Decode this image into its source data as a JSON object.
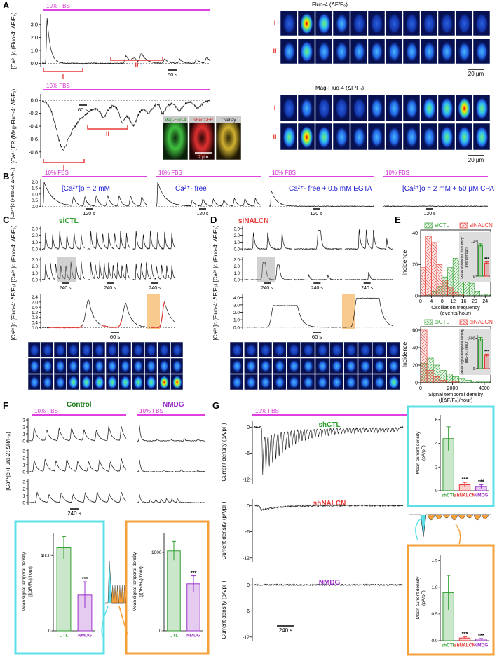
{
  "panel_labels": [
    "A",
    "B",
    "C",
    "D",
    "E",
    "F",
    "G"
  ],
  "panel_a": {
    "fbs_top": "10% FBS",
    "fbs_bottom": "10% FBS",
    "ylabel_top": "[Ca²⁺]c (Fluo-4: ΔF/F₀)",
    "ylim_top": [
      -0.3,
      3.8
    ],
    "yticks_top": [
      {
        "value": 0,
        "label": "0.0"
      },
      {
        "value": 1,
        "label": "1.0"
      },
      {
        "value": 2,
        "label": "2.0"
      },
      {
        "value": 3,
        "label": "3.0"
      }
    ],
    "ylabel_bottom": "[Ca²⁺]ER (Mag-Fluo-4: ΔF/F₀)",
    "ylim_bottom": [
      -0.9,
      0.1
    ],
    "yticks_bottom": [
      -0.8,
      -0.6,
      -0.4,
      -0.2,
      {
        "value": 0,
        "label": "0.0"
      }
    ],
    "phase_labels_top": [
      "I",
      "II"
    ],
    "phase_labels_bottom": [
      "I",
      "II"
    ],
    "scale_top": "60 s",
    "scale_bottom": "60 s",
    "inset_labels": [
      "Mag-Fluo-4",
      "DsRed2-ER",
      "Overlay"
    ],
    "inset_scale": "2 µm",
    "images_top_title": "Fluo-4 (ΔF/F₀)",
    "images_top_rows": [
      "I",
      "II"
    ],
    "images_top_scale": "20 µm",
    "images_bottom_title": "Mag-Fluo-4 (ΔF/F₀)",
    "images_bottom_rows": [
      "I",
      "II"
    ],
    "images_bottom_scale": "20 µm"
  },
  "panel_b": {
    "ylabel": "[Ca²⁺]c (Fura-2: ΔR/R₀)",
    "ylim": [
      -0.1,
      2.2
    ],
    "yticks": [
      {
        "value": 0,
        "label": "0.0"
      },
      0.5,
      {
        "value": 1,
        "label": "1.0"
      },
      1.5,
      {
        "value": 2,
        "label": "2.0"
      }
    ],
    "conditions": [
      {
        "fbs": "10% FBS",
        "label": "[Ca²⁺]o = 2 mM",
        "scale": "120 s"
      },
      {
        "fbs": "10% FBS",
        "label": "Ca²⁺- free",
        "scale": "120 s"
      },
      {
        "fbs": "10% FBS",
        "label": "Ca²⁺- free  + 0.5 mM EGTA",
        "scale": "120 s"
      },
      {
        "fbs": "10% FBS",
        "label": "[Ca²⁺]o = 2 mM  +  50 µM CPA",
        "scale": "120 s"
      }
    ]
  },
  "panel_c": {
    "title": "siCTL",
    "ylabel_rows": "[Ca²⁺]c (Fluo-4: ΔF/F₀)",
    "rows_ylim": [
      -0.3,
      3.4
    ],
    "rows_yticks": [
      {
        "value": 0,
        "label": "0.0"
      },
      {
        "value": 1,
        "label": "1.0"
      },
      {
        "value": 2,
        "label": "2.0"
      },
      {
        "value": 3,
        "label": "3.0"
      }
    ],
    "row_scales": [
      "240 s",
      "240 s",
      "240 s"
    ],
    "ylabel_zoom": "[Ca²⁺]c (Fluo-4: ΔF/F₀)",
    "zoom_ylim": [
      -0.15,
      2.6
    ],
    "zoom_yticks": [
      {
        "value": 0,
        "label": "0.0"
      },
      0.4,
      0.8,
      1.2,
      1.6,
      {
        "value": 2,
        "label": "2.0"
      },
      2.4
    ],
    "zoom_scale": "60 s"
  },
  "panel_d": {
    "title": "siNALCN",
    "ylabel_rows": "[Ca²⁺]c (Fluo-4: ΔF/F₀)",
    "rows_ylim": [
      -0.3,
      3.4
    ],
    "rows_yticks": [
      {
        "value": 0,
        "label": "0.0"
      },
      {
        "value": 1,
        "label": "1.0"
      },
      {
        "value": 2,
        "label": "2.0"
      },
      {
        "value": 3,
        "label": "3.0"
      }
    ],
    "row_scales": [
      "240 s",
      "240 s",
      "240 s"
    ],
    "ylabel_zoom": "[Ca²⁺]c (Fluo-4: ΔF/F₀)",
    "zoom_ylim": [
      -0.3,
      4.4
    ],
    "zoom_yticks": [
      {
        "value": 0,
        "label": "0.0"
      },
      {
        "value": 1,
        "label": "1.0"
      },
      {
        "value": 2,
        "label": "2.0"
      },
      {
        "value": 3,
        "label": "3.0"
      },
      {
        "value": 4,
        "label": "4.0"
      }
    ],
    "zoom_scale": "60 s"
  },
  "panel_e": {
    "histograms": [
      {
        "ylabel": "Incidence",
        "xlabel": [
          "Oscillation frequency",
          "(events/hour)"
        ],
        "bins": [
          0,
          2,
          4,
          6,
          8,
          10,
          12,
          14,
          16,
          18,
          20,
          22,
          24,
          26
        ],
        "xlim": [
          0,
          26
        ],
        "xticks": [
          0,
          4,
          8,
          12,
          16,
          20,
          24
        ],
        "ylim": [
          0,
          42
        ],
        "yticks": [
          0,
          20,
          40
        ],
        "series": [
          {
            "name": "siCTL",
            "color": "#2e9e2e",
            "values": [
              0,
              1,
              3,
              6,
              12,
              18,
              24,
              22,
              14,
              8,
              3,
              1,
              1
            ]
          },
          {
            "name": "siNALCN",
            "color": "#e53935",
            "values": [
              18,
              38,
              34,
              20,
              10,
              5,
              2,
              1,
              0,
              0,
              0,
              0,
              0
            ]
          }
        ]
      },
      {
        "ylabel": "Incidence",
        "xlabel": [
          "Signal temporal density",
          "(∫(ΔF/F₀)/hour)"
        ],
        "bins": [
          0,
          400,
          800,
          1200,
          1600,
          2000,
          2400,
          2800,
          3200,
          3600,
          4000,
          4400
        ],
        "xlim": [
          0,
          4400
        ],
        "xticks": [
          0,
          2000,
          4000
        ],
        "ylim": [
          0,
          64
        ],
        "yticks": [
          0,
          20,
          40,
          60
        ],
        "series": [
          {
            "name": "siCTL",
            "color": "#2e9e2e",
            "values": [
              22,
              28,
              20,
              14,
              10,
              7,
              5,
              3,
              2,
              1,
              1
            ]
          },
          {
            "name": "siNALCN",
            "color": "#e53935",
            "values": [
              60,
              14,
              7,
              3,
              2,
              1,
              0,
              0,
              0,
              0,
              0
            ]
          }
        ]
      }
    ],
    "insets": [
      {
        "ylabel": [
          "Mean oscillation frequency",
          "(events/hour)"
        ],
        "ylim": [
          0,
          12.5
        ],
        "yticks": [
          0,
          12
        ],
        "values": [
          10.5,
          4.5
        ],
        "errors": [
          0.6,
          0.4
        ],
        "colors": [
          "#2e9e2e",
          "#e53935"
        ],
        "significance": [
          {
            "bar": 1,
            "label": "***"
          }
        ]
      },
      {
        "ylabel": [
          "Mean signal temporal density",
          "(∫(ΔF/F₀)/hour)"
        ],
        "ylim": [
          0,
          1650
        ],
        "yticks": [
          0,
          1500
        ],
        "values": [
          1450,
          650
        ],
        "errors": [
          80,
          60
        ],
        "colors": [
          "#2e9e2e",
          "#e53935"
        ],
        "significance": [
          {
            "bar": 1,
            "label": "***"
          }
        ]
      }
    ]
  },
  "panel_f": {
    "groups": [
      "Control",
      "NMDG"
    ],
    "fbs": [
      "10% FBS",
      "10% FBS"
    ],
    "ylabel": "[Ca²⁺]c (Fura-2: ΔR/R₀)",
    "ylim": [
      -0.3,
      3.3
    ],
    "yticks": [
      0,
      1,
      2,
      3
    ],
    "scale": "240 s",
    "insets": [
      {
        "ylabel": [
          "Mean signal temporal density",
          "(∫(ΔR/R₀)/hour)"
        ],
        "ylim": [
          0,
          5200
        ],
        "yticks": [
          0,
          4000
        ],
        "categories": [
          "CTL",
          "NMDG"
        ],
        "values": [
          4400,
          1900
        ],
        "errors": [
          600,
          700
        ],
        "colors": [
          "#2e9e2e",
          "#9b30c8"
        ],
        "significance": [
          {
            "bar": 1,
            "label": "***"
          }
        ]
      },
      {
        "ylabel": [
          "Mean signal temporal density",
          "(∫(ΔR/R₀)/hour)"
        ],
        "ylim": [
          0,
          1250
        ],
        "yticks": [
          0,
          1000
        ],
        "categories": [
          "CTL",
          "NMDG"
        ],
        "values": [
          1020,
          600
        ],
        "errors": [
          120,
          100
        ],
        "colors": [
          "#2e9e2e",
          "#9b30c8"
        ],
        "significance": [
          {
            "bar": 1,
            "label": "***"
          }
        ]
      }
    ]
  },
  "panel_g": {
    "fbs": "10% FBS",
    "ylim": [
      -13,
      1.5
    ],
    "yticks": [
      0,
      -6,
      -12
    ],
    "scale": "240 s",
    "traces": [
      {
        "label": "shCTL",
        "color": "#2e9e2e",
        "ylabel": "Current density (pA/pF)"
      },
      {
        "label": "shNALCN",
        "color": "#e53935",
        "ylabel": "Current density (pA/pF)"
      },
      {
        "label": "NMDG",
        "color": "#9b30c8",
        "ylabel": "Current density (pA/pF)"
      }
    ],
    "insets": [
      {
        "ylabel": [
          "Mean current density",
          "(pA/pF)"
        ],
        "ylim": [
          0,
          6.4
        ],
        "yticks": [
          0,
          2,
          4,
          6
        ],
        "categories": [
          "shCTL",
          "shNALCN",
          "NMDG"
        ],
        "values": [
          4.4,
          0.5,
          0.35
        ],
        "errors": [
          1.0,
          0.2,
          0.15
        ],
        "colors": [
          "#2e9e2e",
          "#e53935",
          "#9b30c8"
        ],
        "significance": [
          {
            "bar": 1,
            "label": "***"
          },
          {
            "bar": 2,
            "label": "***"
          }
        ]
      },
      {
        "ylabel": [
          "Mean current density",
          "(pA/pF)"
        ],
        "ylim": [
          0,
          1.6
        ],
        "yticks": [
          {
            "value": 0,
            "label": "0.0"
          },
          0.5,
          {
            "value": 1,
            "label": "1.0"
          },
          1.5
        ],
        "categories": [
          "shCTL",
          "shNALCN",
          "NMDG"
        ],
        "values": [
          0.9,
          0.05,
          0.03
        ],
        "errors": [
          0.32,
          0.02,
          0.01
        ],
        "colors": [
          "#2e9e2e",
          "#e53935",
          "#9b30c8"
        ],
        "significance": [
          {
            "bar": 1,
            "label": "***"
          },
          {
            "bar": 2,
            "label": "***"
          }
        ]
      }
    ]
  }
}
